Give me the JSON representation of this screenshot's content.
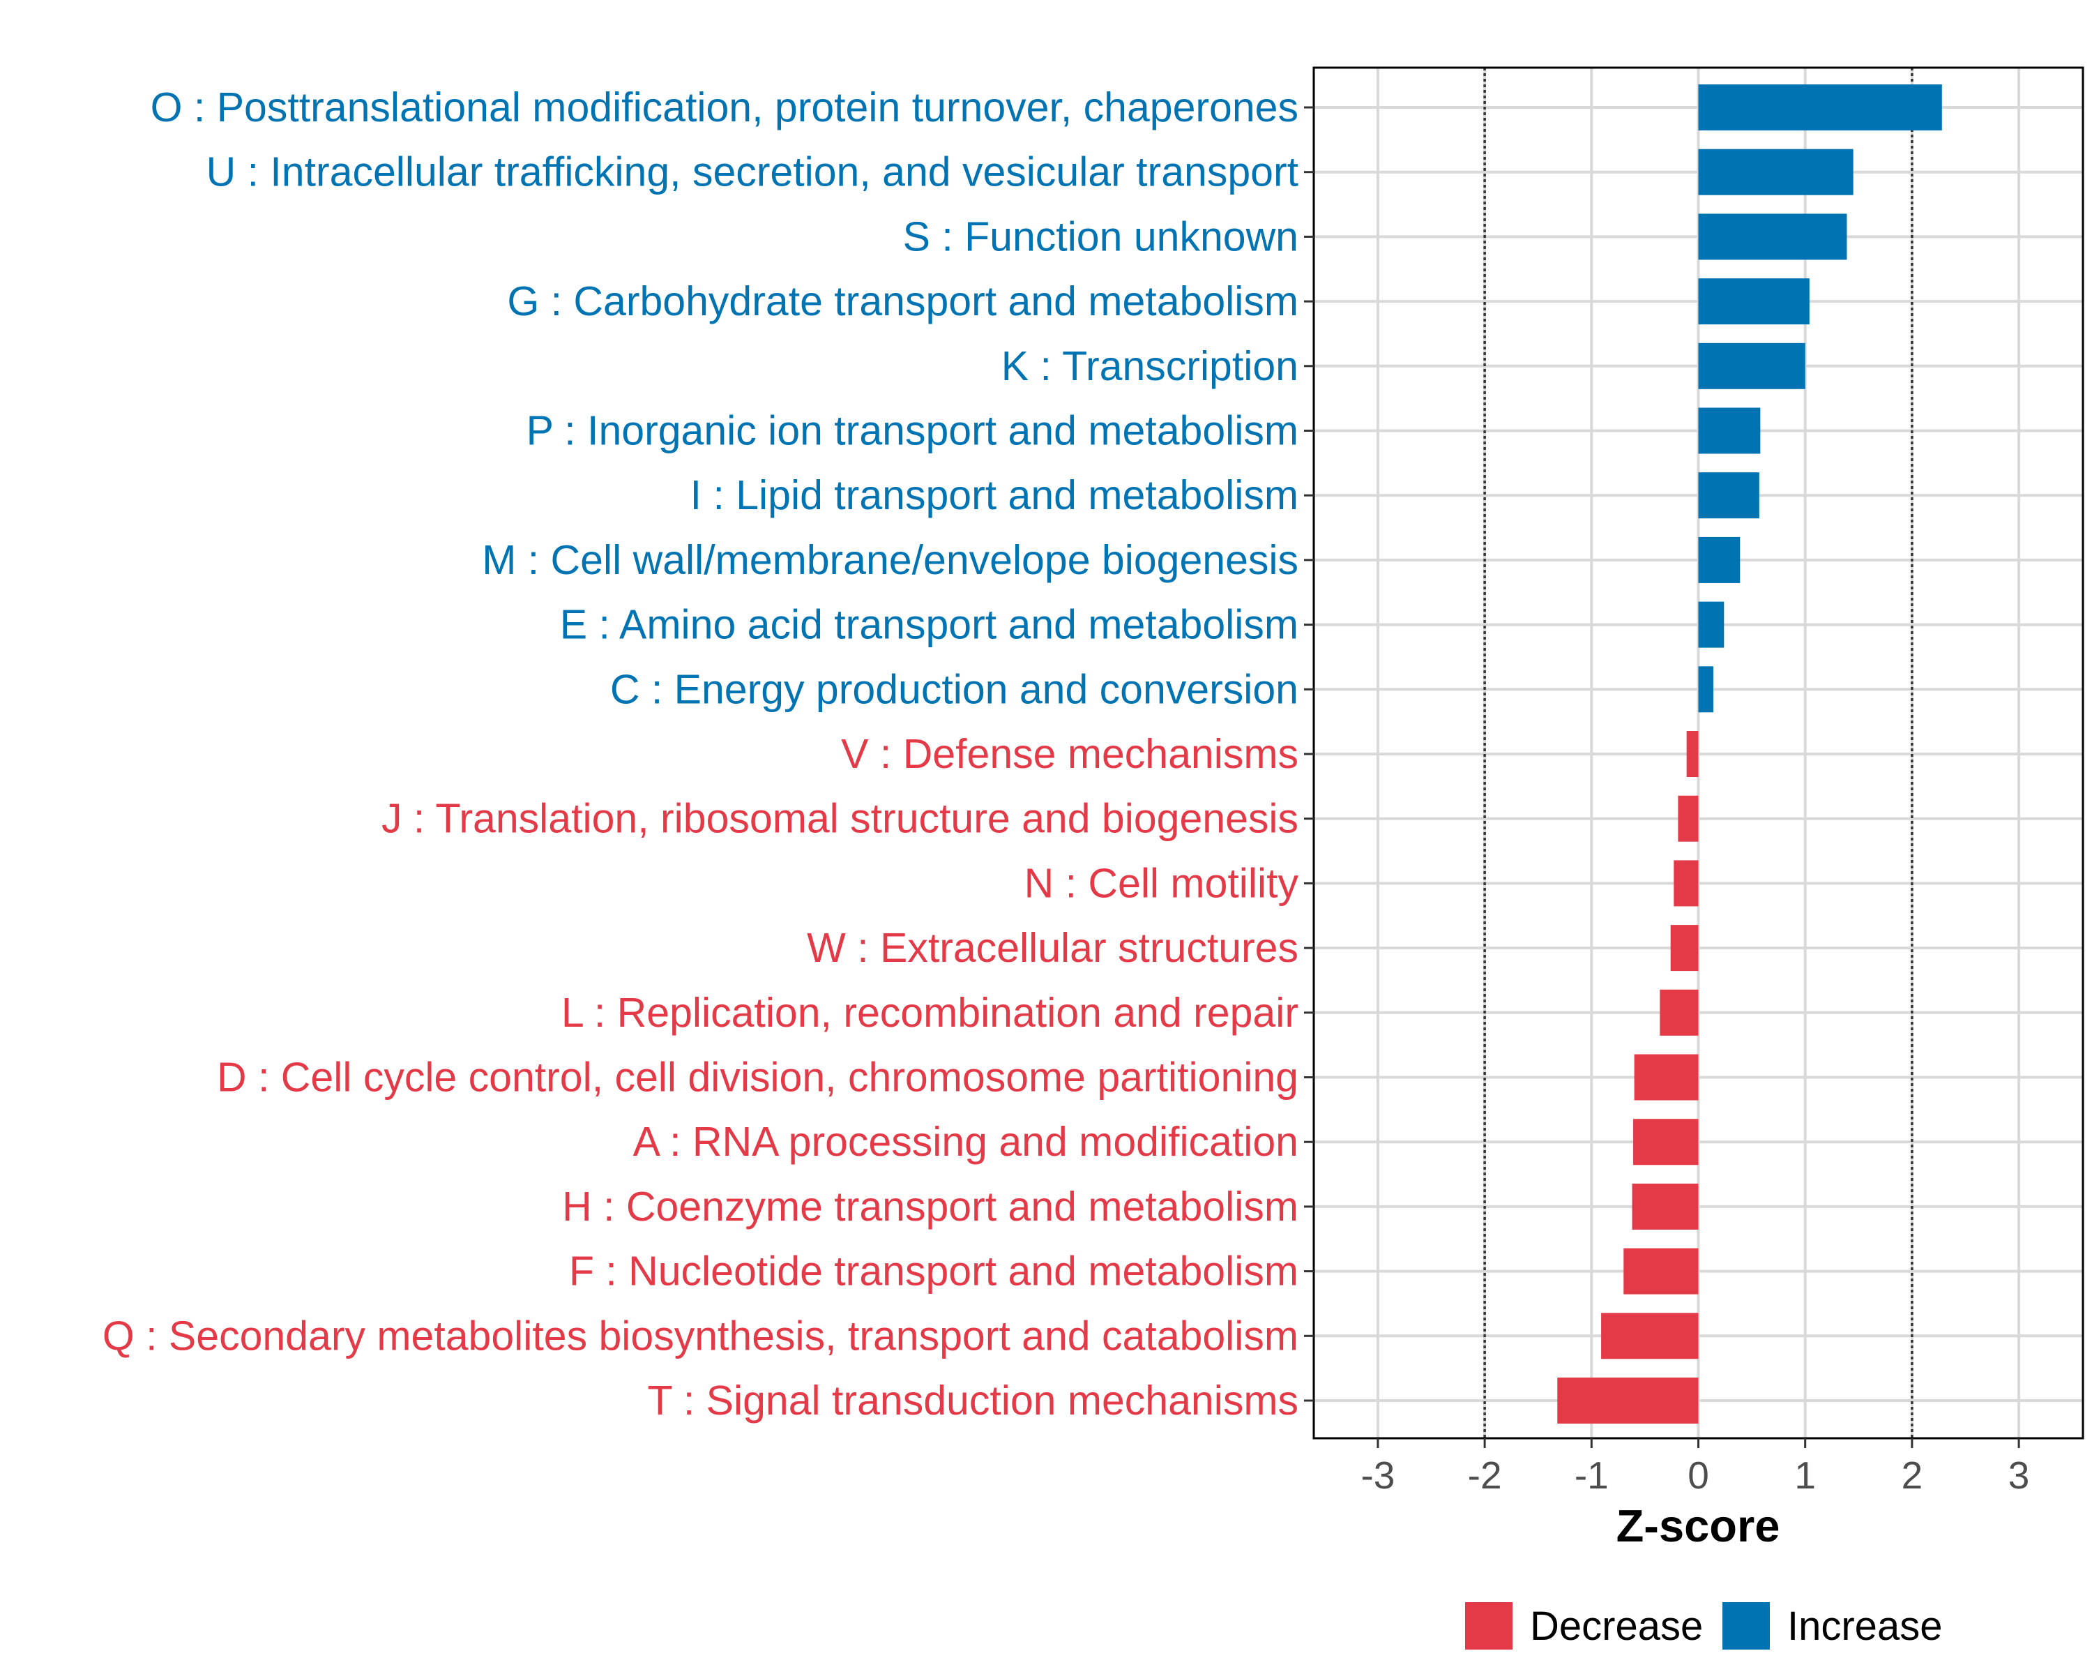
{
  "chart_data": {
    "type": "bar",
    "orientation": "horizontal",
    "title": "",
    "xlabel": "Z-score",
    "ylabel": "",
    "xlim": [
      -3.6,
      3.6
    ],
    "xticks": [
      -3,
      -2,
      -1,
      0,
      1,
      2,
      3
    ],
    "xtick_labels": [
      "-3",
      "-2",
      "-1",
      "0",
      "1",
      "2",
      "3"
    ],
    "reference_lines": [
      -2,
      2
    ],
    "grid": true,
    "legend_position": "bottom",
    "colors": {
      "Increase": "#0073b3",
      "Decrease": "#e43a48"
    },
    "legend": [
      {
        "label": "Decrease",
        "color": "#e43a48"
      },
      {
        "label": "Increase",
        "color": "#0073b3"
      }
    ],
    "categories": [
      {
        "label": "O : Posttranslational modification, protein turnover, chaperones",
        "value": 2.28,
        "direction": "Increase"
      },
      {
        "label": "U : Intracellular trafficking, secretion, and vesicular transport",
        "value": 1.45,
        "direction": "Increase"
      },
      {
        "label": "S : Function unknown",
        "value": 1.39,
        "direction": "Increase"
      },
      {
        "label": "G : Carbohydrate transport and metabolism",
        "value": 1.04,
        "direction": "Increase"
      },
      {
        "label": "K : Transcription",
        "value": 1.0,
        "direction": "Increase"
      },
      {
        "label": "P : Inorganic ion transport and metabolism",
        "value": 0.58,
        "direction": "Increase"
      },
      {
        "label": "I : Lipid transport and metabolism",
        "value": 0.57,
        "direction": "Increase"
      },
      {
        "label": "M : Cell wall/membrane/envelope biogenesis",
        "value": 0.39,
        "direction": "Increase"
      },
      {
        "label": "E : Amino acid transport and metabolism",
        "value": 0.24,
        "direction": "Increase"
      },
      {
        "label": "C : Energy production and conversion",
        "value": 0.14,
        "direction": "Increase"
      },
      {
        "label": "V : Defense mechanisms",
        "value": -0.11,
        "direction": "Decrease"
      },
      {
        "label": "J : Translation, ribosomal structure and biogenesis",
        "value": -0.19,
        "direction": "Decrease"
      },
      {
        "label": "N : Cell motility",
        "value": -0.23,
        "direction": "Decrease"
      },
      {
        "label": "W : Extracellular structures",
        "value": -0.26,
        "direction": "Decrease"
      },
      {
        "label": "L : Replication, recombination and repair",
        "value": -0.36,
        "direction": "Decrease"
      },
      {
        "label": "D : Cell cycle control, cell division, chromosome partitioning",
        "value": -0.6,
        "direction": "Decrease"
      },
      {
        "label": "A : RNA processing and modification",
        "value": -0.61,
        "direction": "Decrease"
      },
      {
        "label": "H : Coenzyme transport and metabolism",
        "value": -0.62,
        "direction": "Decrease"
      },
      {
        "label": "F : Nucleotide transport and metabolism",
        "value": -0.7,
        "direction": "Decrease"
      },
      {
        "label": "Q : Secondary metabolites biosynthesis, transport and catabolism",
        "value": -0.91,
        "direction": "Decrease"
      },
      {
        "label": "T : Signal transduction mechanisms",
        "value": -1.32,
        "direction": "Decrease"
      }
    ]
  }
}
